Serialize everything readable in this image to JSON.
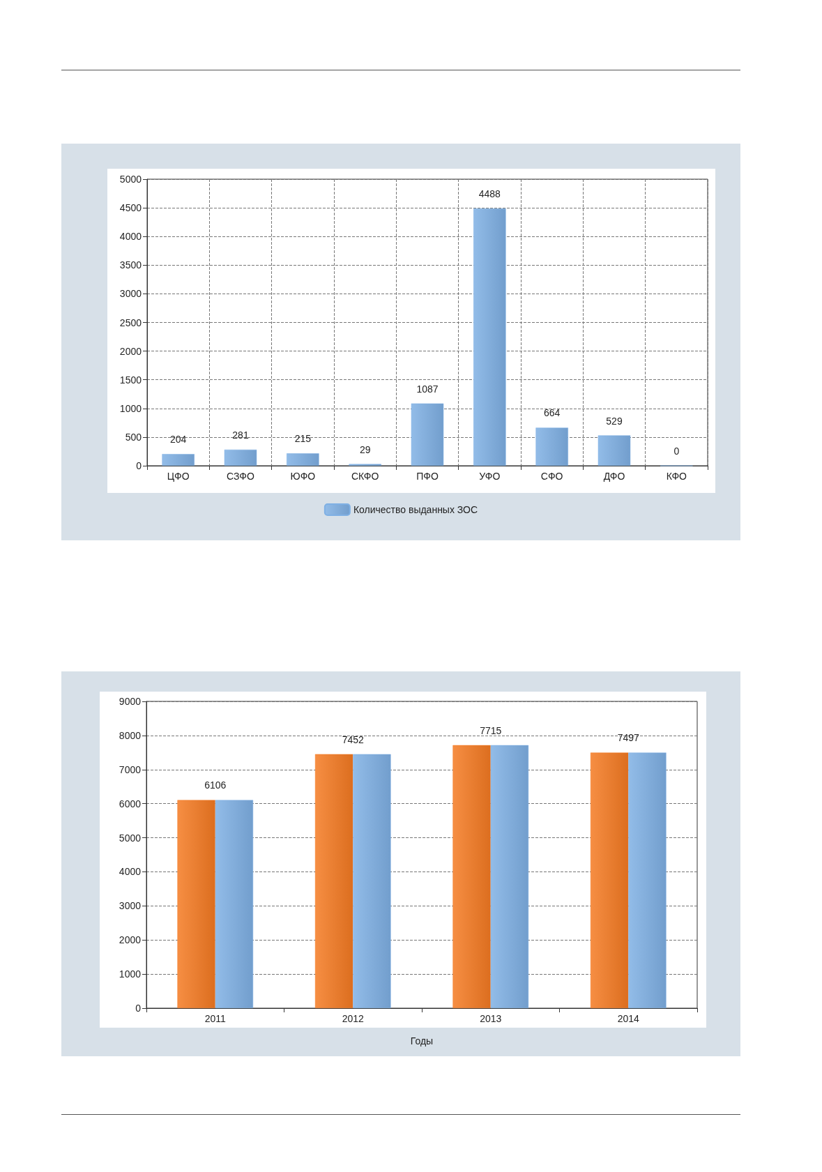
{
  "chart_data": [
    {
      "type": "bar",
      "categories": [
        "ЦФО",
        "СЗФО",
        "ЮФО",
        "СКФО",
        "ПФО",
        "УФО",
        "СФО",
        "ДФО",
        "КФО"
      ],
      "series": [
        {
          "name": "Количество выданных ЗОС",
          "color": "#7fb0e4",
          "values": [
            204,
            281,
            215,
            29,
            1087,
            4488,
            664,
            529,
            0
          ]
        }
      ],
      "ylim": [
        0,
        5000
      ],
      "yticks": [
        0,
        500,
        1000,
        1500,
        2000,
        2500,
        3000,
        3500,
        4000,
        4500,
        5000
      ],
      "grid": true,
      "legend": "bottom",
      "data_labels": true
    },
    {
      "type": "bar",
      "categories": [
        "2011",
        "2012",
        "2013",
        "2014"
      ],
      "xlabel": "Годы",
      "series": [
        {
          "color": "#f47a22",
          "values": [
            6106,
            7452,
            7715,
            7497
          ]
        },
        {
          "color": "#7fb0e4",
          "values": [
            6106,
            7452,
            7715,
            7497
          ]
        }
      ],
      "ylim": [
        0,
        9000
      ],
      "yticks": [
        0,
        1000,
        2000,
        3000,
        4000,
        5000,
        6000,
        7000,
        8000,
        9000
      ],
      "grid": "y",
      "annotations": [
        {
          "text": "6106",
          "x": "2011",
          "y": 6106
        },
        {
          "text": "7452",
          "x": "2012",
          "y": 7452
        },
        {
          "text": "7715",
          "x": "2013",
          "y": 7715
        },
        {
          "text": "7497",
          "x": "2014",
          "y": 7497
        }
      ]
    }
  ]
}
